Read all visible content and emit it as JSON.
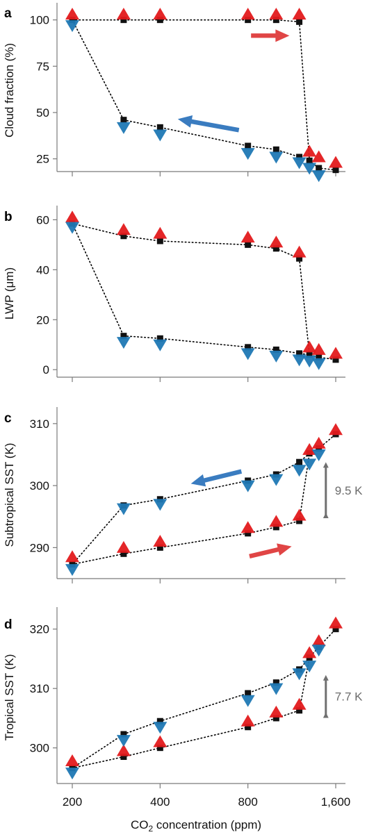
{
  "colors": {
    "increasing": "#e31a1c",
    "decreasing": "#1f78b4",
    "square": "#111111",
    "annotation": "#707070",
    "arrow_red": "#e04545",
    "arrow_blue": "#3a7cc0"
  },
  "figure": {
    "xlabel_pre": "CO",
    "xlabel_sub": "2",
    "xlabel_post": " concentration (ppm)",
    "xticks": [
      "200",
      "400",
      "800",
      "1,600"
    ]
  },
  "chart_data": [
    {
      "panel": "a",
      "type": "scatter",
      "ylabel": "Cloud fraction (%)",
      "x_scale": "log2",
      "xlim": [
        200,
        1600
      ],
      "ylim": [
        17,
        107
      ],
      "yticks": [
        25,
        50,
        75,
        100
      ],
      "squares": {
        "upper": {
          "x": [
            200,
            300,
            400,
            800,
            1000,
            1200
          ],
          "y": [
            100,
            100,
            100,
            100,
            100,
            99
          ]
        },
        "lower": {
          "x": [
            300,
            400,
            800,
            1000,
            1200,
            1300,
            1400,
            1600
          ],
          "y": [
            46,
            42,
            32,
            30,
            26,
            24,
            20,
            19
          ]
        }
      },
      "series": [
        {
          "name": "",
          "marker": "triangle-up",
          "color": "increasing",
          "x": [
            200,
            300,
            400,
            800,
            1000,
            1200,
            1300,
            1400,
            1600
          ],
          "y": [
            103,
            103,
            103,
            103,
            103,
            103,
            29,
            26,
            23
          ]
        },
        {
          "name": "",
          "marker": "triangle-down",
          "color": "decreasing",
          "x": [
            200,
            300,
            400,
            800,
            1000,
            1200,
            1300,
            1400
          ],
          "y": [
            97,
            42,
            38,
            28,
            26,
            23,
            20,
            16
          ]
        }
      ],
      "connector_paths": [
        {
          "x": [
            200,
            300,
            400,
            800,
            1000,
            1200
          ],
          "y": [
            100,
            100,
            100,
            100,
            100,
            99
          ]
        },
        {
          "x": [
            1200,
            1300
          ],
          "y": [
            99,
            24
          ]
        },
        {
          "x": [
            200,
            300
          ],
          "y": [
            100,
            46
          ]
        },
        {
          "x": [
            300,
            400,
            800,
            1000,
            1200,
            1300,
            1400,
            1600
          ],
          "y": [
            46,
            42,
            32,
            30,
            26,
            24,
            20,
            19
          ]
        }
      ],
      "direction_arrows": [
        {
          "color": "arrow_red",
          "from": [
            820,
            91.5
          ],
          "to": [
            1110,
            91.5
          ]
        },
        {
          "color": "arrow_blue",
          "from": [
            745,
            40.5
          ],
          "to": [
            460,
            46.5
          ]
        }
      ]
    },
    {
      "panel": "b",
      "type": "scatter",
      "ylabel": "LWP (μm)",
      "x_scale": "log2",
      "xlim": [
        200,
        1600
      ],
      "ylim": [
        -3,
        64
      ],
      "yticks": [
        0,
        20,
        40,
        60
      ],
      "squares": {
        "upper": {
          "x": [
            200,
            300,
            400,
            800,
            1000,
            1200
          ],
          "y": [
            58.5,
            53.5,
            51.5,
            50,
            48.5,
            44.5
          ]
        },
        "lower": {
          "x": [
            300,
            400,
            800,
            1000,
            1200,
            1300,
            1400,
            1600
          ],
          "y": [
            13.5,
            12.5,
            9,
            8,
            6.5,
            6,
            5,
            4
          ]
        }
      },
      "series": [
        {
          "name": "",
          "marker": "triangle-up",
          "color": "increasing",
          "x": [
            200,
            300,
            400,
            800,
            1000,
            1200,
            1300,
            1400,
            1600
          ],
          "y": [
            61,
            56,
            54.5,
            53,
            51,
            47,
            9,
            8,
            6.5
          ]
        },
        {
          "name": "",
          "marker": "triangle-down",
          "color": "decreasing",
          "x": [
            200,
            300,
            400,
            800,
            1000,
            1200,
            1300,
            1400
          ],
          "y": [
            57,
            11,
            10,
            6.5,
            5.5,
            4,
            3.5,
            2.5
          ]
        }
      ],
      "connector_paths": [
        {
          "x": [
            200,
            300,
            400,
            800,
            1000,
            1200
          ],
          "y": [
            58.5,
            53.5,
            51.5,
            50,
            48.5,
            44.5
          ]
        },
        {
          "x": [
            1200,
            1300
          ],
          "y": [
            44.5,
            6
          ]
        },
        {
          "x": [
            200,
            300
          ],
          "y": [
            58.5,
            13.5
          ]
        },
        {
          "x": [
            300,
            400,
            800,
            1000,
            1200,
            1300,
            1400,
            1600
          ],
          "y": [
            13.5,
            12.5,
            9,
            8,
            6.5,
            6,
            5,
            4
          ]
        }
      ],
      "direction_arrows": []
    },
    {
      "panel": "c",
      "type": "scatter",
      "ylabel": "Subtropical SST (K)",
      "x_scale": "log2",
      "xlim": [
        200,
        1600
      ],
      "ylim": [
        285,
        312
      ],
      "yticks": [
        290,
        300,
        310
      ],
      "squares": {
        "upper": {
          "x": [
            300,
            400,
            800,
            1000,
            1200,
            1300,
            1400,
            1600
          ],
          "y": [
            296.8,
            297.8,
            300.8,
            301.8,
            303.8,
            305.2,
            306,
            308.3
          ]
        },
        "lower": {
          "x": [
            200,
            300,
            400,
            800,
            1000,
            1200
          ],
          "y": [
            287.3,
            289,
            290,
            292.3,
            293.3,
            294.3
          ]
        }
      },
      "series": [
        {
          "name": "",
          "marker": "triangle-up",
          "color": "increasing",
          "x": [
            200,
            300,
            400,
            800,
            1000,
            1200,
            1300,
            1400,
            1600
          ],
          "y": [
            288.5,
            290,
            291,
            293.2,
            294.2,
            295.2,
            305.8,
            306.8,
            309
          ]
        },
        {
          "name": "",
          "marker": "triangle-down",
          "color": "decreasing",
          "x": [
            200,
            300,
            400,
            800,
            1000,
            1200,
            1300,
            1400
          ],
          "y": [
            286.5,
            296.3,
            297,
            300,
            301,
            302.5,
            303.5,
            305
          ]
        }
      ],
      "connector_paths": [
        {
          "x": [
            200,
            300,
            400,
            800,
            1000,
            1200
          ],
          "y": [
            287.3,
            289,
            290,
            292.3,
            293.3,
            294.3
          ]
        },
        {
          "x": [
            1200,
            1300
          ],
          "y": [
            294.3,
            305.2
          ]
        },
        {
          "x": [
            200,
            300
          ],
          "y": [
            287.3,
            296.8
          ]
        },
        {
          "x": [
            300,
            400,
            800,
            1000,
            1200,
            1300,
            1400,
            1600
          ],
          "y": [
            296.8,
            297.8,
            300.8,
            301.8,
            303.8,
            305.2,
            306,
            308.3
          ]
        }
      ],
      "direction_arrows": [
        {
          "color": "arrow_blue",
          "from": [
            760,
            302.3
          ],
          "to": [
            510,
            300.3
          ]
        },
        {
          "color": "arrow_red",
          "from": [
            810,
            288.6
          ],
          "to": [
            1130,
            290.2
          ]
        }
      ],
      "span_annotation": {
        "label": "9.5 K",
        "x": 1480,
        "y_from": 294.5,
        "y_to": 304
      }
    },
    {
      "panel": "d",
      "type": "scatter",
      "ylabel": "Tropical SST (K)",
      "x_scale": "log2",
      "xlim": [
        200,
        1600
      ],
      "ylim": [
        294,
        323
      ],
      "yticks": [
        300,
        310,
        320
      ],
      "squares": {
        "upper": {
          "x": [
            300,
            400,
            800,
            1000,
            1200,
            1300,
            1400,
            1600
          ],
          "y": [
            302.3,
            304.5,
            309.2,
            311,
            313.2,
            315.2,
            317,
            320
          ]
        },
        "lower": {
          "x": [
            200,
            300,
            400,
            800,
            1000,
            1200
          ],
          "y": [
            296.6,
            298.5,
            300,
            303.5,
            305,
            306.3
          ]
        }
      },
      "series": [
        {
          "name": "",
          "marker": "triangle-up",
          "color": "increasing",
          "x": [
            200,
            300,
            400,
            800,
            1000,
            1200,
            1300,
            1400,
            1600
          ],
          "y": [
            297.8,
            299.5,
            301,
            304.5,
            306,
            307.3,
            316,
            318,
            321
          ]
        },
        {
          "name": "",
          "marker": "triangle-down",
          "color": "decreasing",
          "x": [
            200,
            300,
            400,
            800,
            1000,
            1200,
            1300,
            1400
          ],
          "y": [
            295.8,
            301.3,
            303.5,
            308,
            310,
            312.5,
            313.8,
            316.5
          ]
        }
      ],
      "connector_paths": [
        {
          "x": [
            200,
            300,
            400,
            800,
            1000,
            1200
          ],
          "y": [
            296.6,
            298.5,
            300,
            303.5,
            305,
            306.3
          ]
        },
        {
          "x": [
            1200,
            1300
          ],
          "y": [
            306.3,
            315.2
          ]
        },
        {
          "x": [
            200,
            300
          ],
          "y": [
            296.6,
            302.3
          ]
        },
        {
          "x": [
            300,
            400,
            800,
            1000,
            1200,
            1300,
            1400,
            1600
          ],
          "y": [
            302.3,
            304.5,
            309.2,
            311,
            313.2,
            315.2,
            317,
            320
          ]
        }
      ],
      "direction_arrows": [],
      "span_annotation": {
        "label": "7.7 K",
        "x": 1480,
        "y_from": 304.8,
        "y_to": 312.5
      }
    }
  ]
}
